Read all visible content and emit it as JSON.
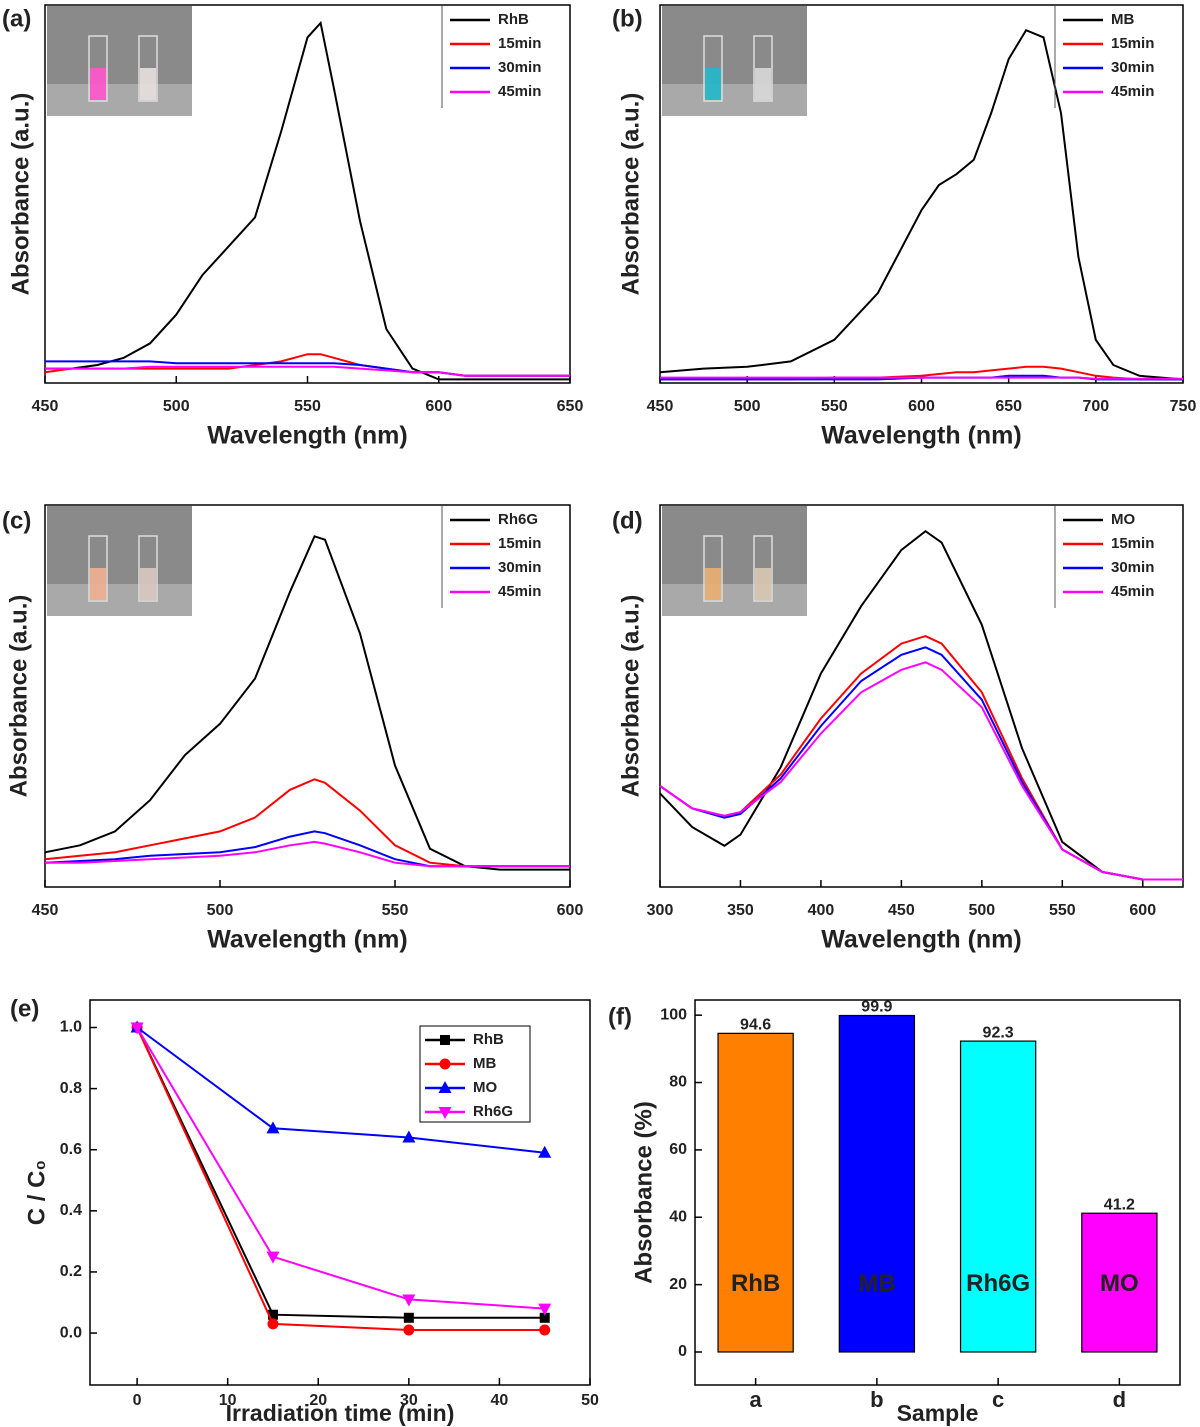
{
  "chart_data": [
    {
      "type": "line",
      "label": "(a)",
      "x_label": "Wavelength (nm)",
      "y_label": "Absorbance (a.u.)",
      "xlim": [
        450,
        650
      ],
      "xticks": [
        450,
        500,
        550,
        600,
        650
      ],
      "ylim": [
        0,
        1.05
      ],
      "legend": "upper right",
      "x": [
        450,
        460,
        470,
        480,
        490,
        500,
        510,
        520,
        530,
        540,
        550,
        555,
        560,
        570,
        580,
        590,
        600,
        610,
        620,
        630,
        640,
        650
      ],
      "series": [
        {
          "name": "RhB",
          "color": "#000000",
          "values": [
            0.04,
            0.04,
            0.05,
            0.07,
            0.11,
            0.19,
            0.3,
            0.38,
            0.46,
            0.7,
            0.96,
            1.0,
            0.82,
            0.45,
            0.15,
            0.04,
            0.01,
            0.01,
            0.01,
            0.01,
            0.01,
            0.01
          ]
        },
        {
          "name": "15min",
          "color": "#ff0000",
          "values": [
            0.03,
            0.04,
            0.04,
            0.04,
            0.04,
            0.04,
            0.04,
            0.04,
            0.05,
            0.06,
            0.08,
            0.08,
            0.07,
            0.05,
            0.04,
            0.03,
            0.03,
            0.02,
            0.02,
            0.02,
            0.02,
            0.02
          ]
        },
        {
          "name": "30min",
          "color": "#0000ff",
          "values": [
            0.06,
            0.06,
            0.06,
            0.06,
            0.06,
            0.055,
            0.055,
            0.055,
            0.055,
            0.055,
            0.055,
            0.055,
            0.055,
            0.05,
            0.04,
            0.03,
            0.03,
            0.02,
            0.02,
            0.02,
            0.02,
            0.02
          ]
        },
        {
          "name": "45min",
          "color": "#ff00ff",
          "values": [
            0.04,
            0.04,
            0.04,
            0.04,
            0.045,
            0.045,
            0.045,
            0.045,
            0.045,
            0.045,
            0.045,
            0.045,
            0.045,
            0.04,
            0.035,
            0.03,
            0.03,
            0.02,
            0.02,
            0.02,
            0.02,
            0.02
          ]
        }
      ]
    },
    {
      "type": "line",
      "label": "(b)",
      "x_label": "Wavelength (nm)",
      "y_label": "Absorbance (a.u.)",
      "xlim": [
        450,
        750
      ],
      "xticks": [
        450,
        500,
        550,
        600,
        650,
        700,
        750
      ],
      "ylim": [
        0,
        1.05
      ],
      "legend": "upper right",
      "x": [
        450,
        475,
        500,
        525,
        550,
        575,
        600,
        610,
        620,
        630,
        640,
        650,
        660,
        670,
        680,
        690,
        700,
        710,
        725,
        750
      ],
      "series": [
        {
          "name": "MB",
          "color": "#000000",
          "values": [
            0.03,
            0.04,
            0.045,
            0.06,
            0.12,
            0.25,
            0.48,
            0.55,
            0.58,
            0.62,
            0.75,
            0.9,
            0.98,
            0.96,
            0.75,
            0.35,
            0.12,
            0.05,
            0.02,
            0.01
          ]
        },
        {
          "name": "15min",
          "color": "#ff0000",
          "values": [
            0.01,
            0.01,
            0.01,
            0.01,
            0.015,
            0.015,
            0.02,
            0.025,
            0.03,
            0.03,
            0.035,
            0.04,
            0.045,
            0.045,
            0.04,
            0.03,
            0.02,
            0.015,
            0.01,
            0.01
          ]
        },
        {
          "name": "30min",
          "color": "#0000ff",
          "values": [
            0.01,
            0.01,
            0.01,
            0.01,
            0.01,
            0.01,
            0.015,
            0.015,
            0.015,
            0.015,
            0.015,
            0.02,
            0.02,
            0.02,
            0.015,
            0.015,
            0.01,
            0.01,
            0.01,
            0.01
          ]
        },
        {
          "name": "45min",
          "color": "#ff00ff",
          "values": [
            0.015,
            0.015,
            0.015,
            0.015,
            0.015,
            0.015,
            0.015,
            0.015,
            0.015,
            0.015,
            0.015,
            0.015,
            0.015,
            0.015,
            0.015,
            0.015,
            0.012,
            0.012,
            0.012,
            0.012
          ]
        }
      ]
    },
    {
      "type": "line",
      "label": "(c)",
      "x_label": "Wavelength (nm)",
      "y_label": "Absorbance (a.u.)",
      "xlim": [
        450,
        600
      ],
      "xticks": [
        450,
        500,
        550,
        600
      ],
      "ylim": [
        -0.05,
        1.05
      ],
      "legend": "upper right",
      "x": [
        450,
        460,
        470,
        480,
        490,
        500,
        510,
        520,
        527,
        530,
        540,
        550,
        560,
        570,
        580,
        590,
        600
      ],
      "series": [
        {
          "name": "Rh6G",
          "color": "#000000",
          "values": [
            0.05,
            0.07,
            0.11,
            0.2,
            0.33,
            0.42,
            0.55,
            0.8,
            0.96,
            0.95,
            0.68,
            0.3,
            0.06,
            0.01,
            0.0,
            0.0,
            0.0
          ]
        },
        {
          "name": "15min",
          "color": "#ff0000",
          "values": [
            0.03,
            0.04,
            0.05,
            0.07,
            0.09,
            0.11,
            0.15,
            0.23,
            0.26,
            0.25,
            0.17,
            0.07,
            0.02,
            0.01,
            0.01,
            0.01,
            0.01
          ]
        },
        {
          "name": "30min",
          "color": "#0000ff",
          "values": [
            0.02,
            0.025,
            0.03,
            0.04,
            0.045,
            0.05,
            0.065,
            0.095,
            0.11,
            0.105,
            0.07,
            0.03,
            0.01,
            0.01,
            0.01,
            0.01,
            0.01
          ]
        },
        {
          "name": "45min",
          "color": "#ff00ff",
          "values": [
            0.02,
            0.02,
            0.025,
            0.03,
            0.035,
            0.04,
            0.05,
            0.07,
            0.08,
            0.075,
            0.05,
            0.02,
            0.01,
            0.01,
            0.01,
            0.01,
            0.01
          ]
        }
      ]
    },
    {
      "type": "line",
      "label": "(d)",
      "x_label": "Wavelength (nm)",
      "y_label": "Absorbance (a.u.)",
      "xlim": [
        300,
        625
      ],
      "xticks": [
        300,
        350,
        400,
        450,
        500,
        550,
        600
      ],
      "ylim": [
        -0.02,
        1.0
      ],
      "legend": "upper right",
      "x": [
        300,
        320,
        340,
        350,
        375,
        400,
        425,
        450,
        465,
        475,
        500,
        525,
        550,
        575,
        600,
        625
      ],
      "series": [
        {
          "name": "MO",
          "color": "#000000",
          "values": [
            0.23,
            0.14,
            0.09,
            0.12,
            0.3,
            0.55,
            0.73,
            0.88,
            0.93,
            0.9,
            0.68,
            0.35,
            0.1,
            0.02,
            0.0,
            0.0
          ]
        },
        {
          "name": "15min",
          "color": "#ff0000",
          "values": [
            0.25,
            0.19,
            0.17,
            0.18,
            0.28,
            0.43,
            0.55,
            0.63,
            0.65,
            0.63,
            0.5,
            0.27,
            0.08,
            0.02,
            0.0,
            0.0
          ]
        },
        {
          "name": "30min",
          "color": "#0000ff",
          "values": [
            0.25,
            0.19,
            0.165,
            0.175,
            0.27,
            0.41,
            0.53,
            0.6,
            0.62,
            0.6,
            0.48,
            0.26,
            0.08,
            0.02,
            0.0,
            0.0
          ]
        },
        {
          "name": "45min",
          "color": "#ff00ff",
          "values": [
            0.25,
            0.19,
            0.17,
            0.18,
            0.26,
            0.39,
            0.5,
            0.56,
            0.58,
            0.56,
            0.46,
            0.25,
            0.08,
            0.02,
            0.0,
            0.0
          ]
        }
      ]
    },
    {
      "type": "line",
      "label": "(e)",
      "x_label": "Irradiation time (min)",
      "y_label": "C / C₀",
      "xlim": [
        -5.2,
        50
      ],
      "xticks": [
        0,
        10,
        20,
        30,
        40,
        50
      ],
      "ylim": [
        -0.17,
        1.09
      ],
      "yticks": [
        {
          "value": 0,
          "label": "0.0"
        },
        0.2,
        0.4,
        0.6,
        0.8,
        {
          "value": 1,
          "label": "1.0"
        }
      ],
      "legend": "upper right",
      "x": [
        0,
        15,
        30,
        45
      ],
      "series": [
        {
          "name": "RhB",
          "color": "#000000",
          "marker": "square",
          "values": [
            1.0,
            0.06,
            0.05,
            0.05
          ]
        },
        {
          "name": "MB",
          "color": "#ff0000",
          "marker": "circle",
          "values": [
            1.0,
            0.03,
            0.01,
            0.01
          ]
        },
        {
          "name": "MO",
          "color": "#0000ff",
          "marker": "triangle-up",
          "values": [
            1.0,
            0.67,
            0.64,
            0.59
          ]
        },
        {
          "name": "Rh6G",
          "color": "#ff00ff",
          "marker": "triangle-down",
          "values": [
            1.0,
            0.25,
            0.11,
            0.08
          ]
        }
      ]
    },
    {
      "type": "bar",
      "label": "(f)",
      "x_label": "Sample",
      "y_label": "Absorbance (%)",
      "categories": [
        "a",
        "b",
        "c",
        "d"
      ],
      "values": [
        94.6,
        99.9,
        92.3,
        41.2
      ],
      "bar_labels": [
        "RhB",
        "MB",
        "Rh6G",
        "MO"
      ],
      "colors": [
        "#ff8000",
        "#0000ff",
        "#00ffff",
        "#ff00ff"
      ],
      "ylim": [
        -9.8,
        104.5
      ],
      "yticks": [
        0,
        20,
        40,
        60,
        80,
        100
      ]
    }
  ]
}
